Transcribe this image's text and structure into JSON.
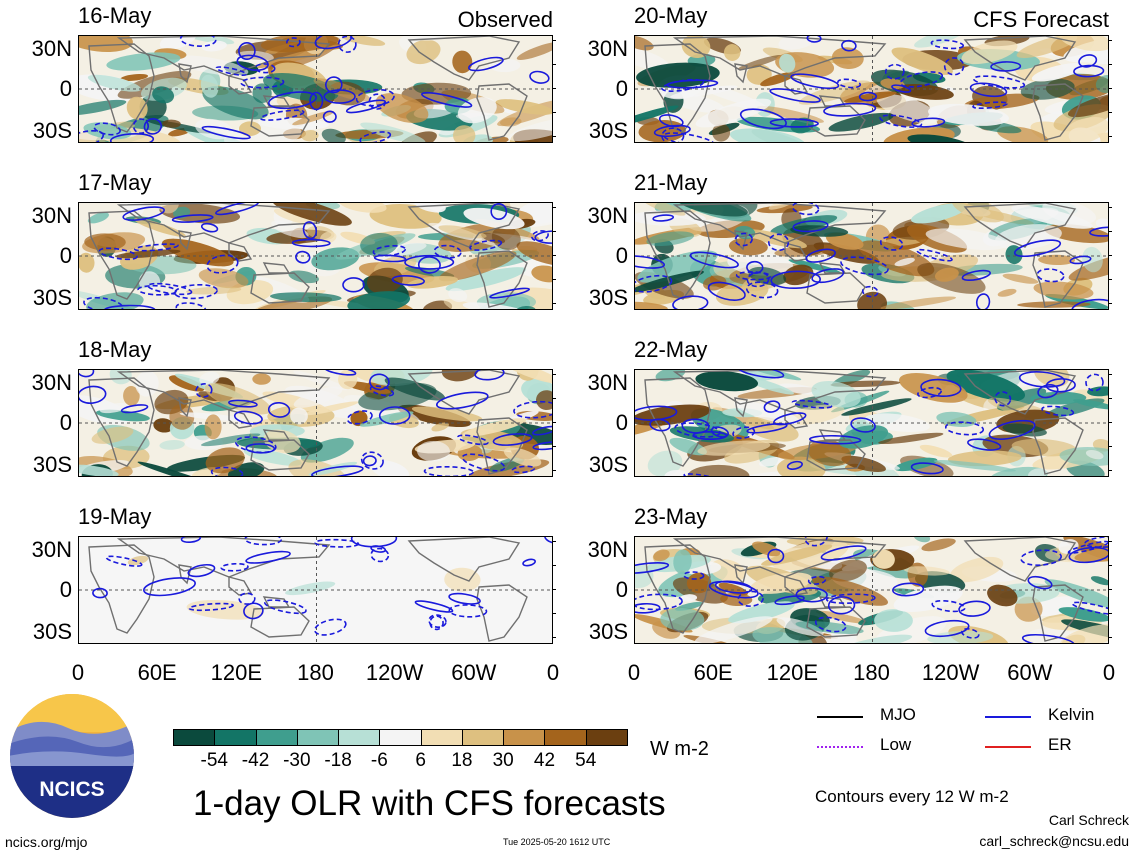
{
  "panels": [
    {
      "date": "16-May",
      "corner": "Observed"
    },
    {
      "date": "17-May",
      "corner": ""
    },
    {
      "date": "18-May",
      "corner": ""
    },
    {
      "date": "19-May",
      "corner": ""
    },
    {
      "date": "20-May",
      "corner": "CFS Forecast"
    },
    {
      "date": "21-May",
      "corner": ""
    },
    {
      "date": "22-May",
      "corner": ""
    },
    {
      "date": "23-May",
      "corner": ""
    }
  ],
  "lat_labels": [
    "30N",
    "0",
    "30S"
  ],
  "lon_labels": [
    "0",
    "60E",
    "120E",
    "180",
    "120W",
    "60W",
    "0"
  ],
  "colorbar": {
    "colors": [
      "#0b4a3d",
      "#137566",
      "#3f9e8e",
      "#7fc4b6",
      "#b7e0d6",
      "#f4f4f4",
      "#f2deb4",
      "#dec080",
      "#c8924a",
      "#a4641c",
      "#6b3f10"
    ],
    "labels": [
      "-54",
      "-42",
      "-30",
      "-18",
      "-6",
      "6",
      "18",
      "30",
      "42",
      "54"
    ],
    "unit": "W m-2"
  },
  "legend": {
    "items": [
      {
        "label": "MJO",
        "color": "#000000"
      },
      {
        "label": "Kelvin",
        "color": "#1a1adc"
      },
      {
        "label": "Low",
        "color": "#a020f0"
      },
      {
        "label": "ER",
        "color": "#e02020"
      }
    ],
    "contours": "Contours every 12 W m-2"
  },
  "logo": {
    "text": "NCICS"
  },
  "title": "1-day OLR with CFS forecasts",
  "footer": {
    "left": "ncics.org/mjo",
    "timestamp": "Tue 2025-05-20 1612 UTC",
    "author": "Carl Schreck",
    "email": "carl_schreck@ncsu.edu"
  }
}
